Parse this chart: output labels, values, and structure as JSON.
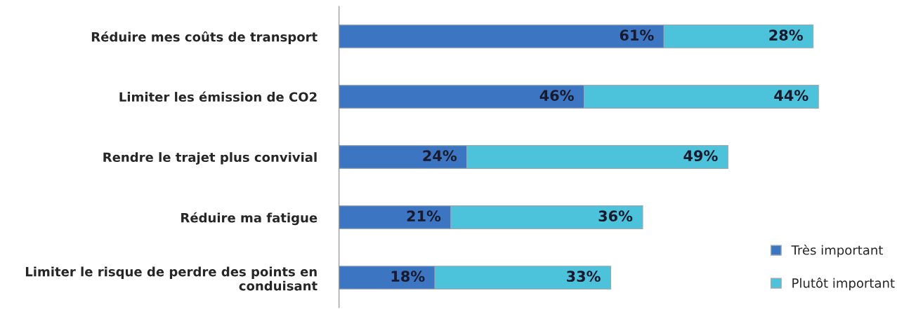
{
  "chart_data": {
    "type": "bar",
    "orientation": "horizontal",
    "stacked": true,
    "legend": "bottom right",
    "grid": false,
    "categories": [
      "Réduire mes coûts de transport",
      "Limiter les émission de CO2",
      "Rendre le trajet plus convivial",
      "Réduire ma fatigue",
      "Limiter le risque de perdre des points en\nconduisant"
    ],
    "series": [
      {
        "name": "Très important",
        "color": "#3c76c3",
        "values": [
          61,
          46,
          24,
          21,
          18
        ],
        "value_labels": [
          "61%",
          "46%",
          "24%",
          "21%",
          "18%"
        ]
      },
      {
        "name": "Plutôt important",
        "color": "#4cc3da",
        "values": [
          28,
          44,
          49,
          36,
          33
        ],
        "value_labels": [
          "28%",
          "44%",
          "49%",
          "36%",
          "33%"
        ]
      }
    ]
  }
}
